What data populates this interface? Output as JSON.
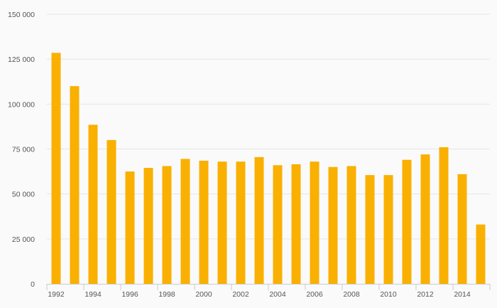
{
  "chart_data": {
    "type": "bar",
    "title": "",
    "xlabel": "",
    "ylabel": "",
    "categories": [
      "1992",
      "1993",
      "1994",
      "1995",
      "1996",
      "1997",
      "1998",
      "1999",
      "2000",
      "2001",
      "2002",
      "2003",
      "2004",
      "2005",
      "2006",
      "2007",
      "2008",
      "2009",
      "2010",
      "2011",
      "2012",
      "2013",
      "2014",
      "2015"
    ],
    "x_tick_labels": [
      "1992",
      "1994",
      "1996",
      "1998",
      "2000",
      "2002",
      "2004",
      "2006",
      "2008",
      "2010",
      "2012",
      "2014"
    ],
    "values": [
      128500,
      110000,
      88500,
      80000,
      62500,
      64500,
      65500,
      69500,
      68500,
      68000,
      68000,
      70500,
      66000,
      66500,
      68000,
      65000,
      65500,
      60500,
      60500,
      69000,
      72000,
      76000,
      61000,
      33000
    ],
    "ylim": [
      0,
      150000
    ],
    "y_ticks": [
      0,
      25000,
      50000,
      75000,
      100000,
      125000,
      150000
    ],
    "y_tick_labels": [
      "0",
      "25 000",
      "50 000",
      "75 000",
      "100 000",
      "125 000",
      "150 000"
    ],
    "grid": true,
    "legend": "none",
    "bar_color": "#f9b000"
  }
}
